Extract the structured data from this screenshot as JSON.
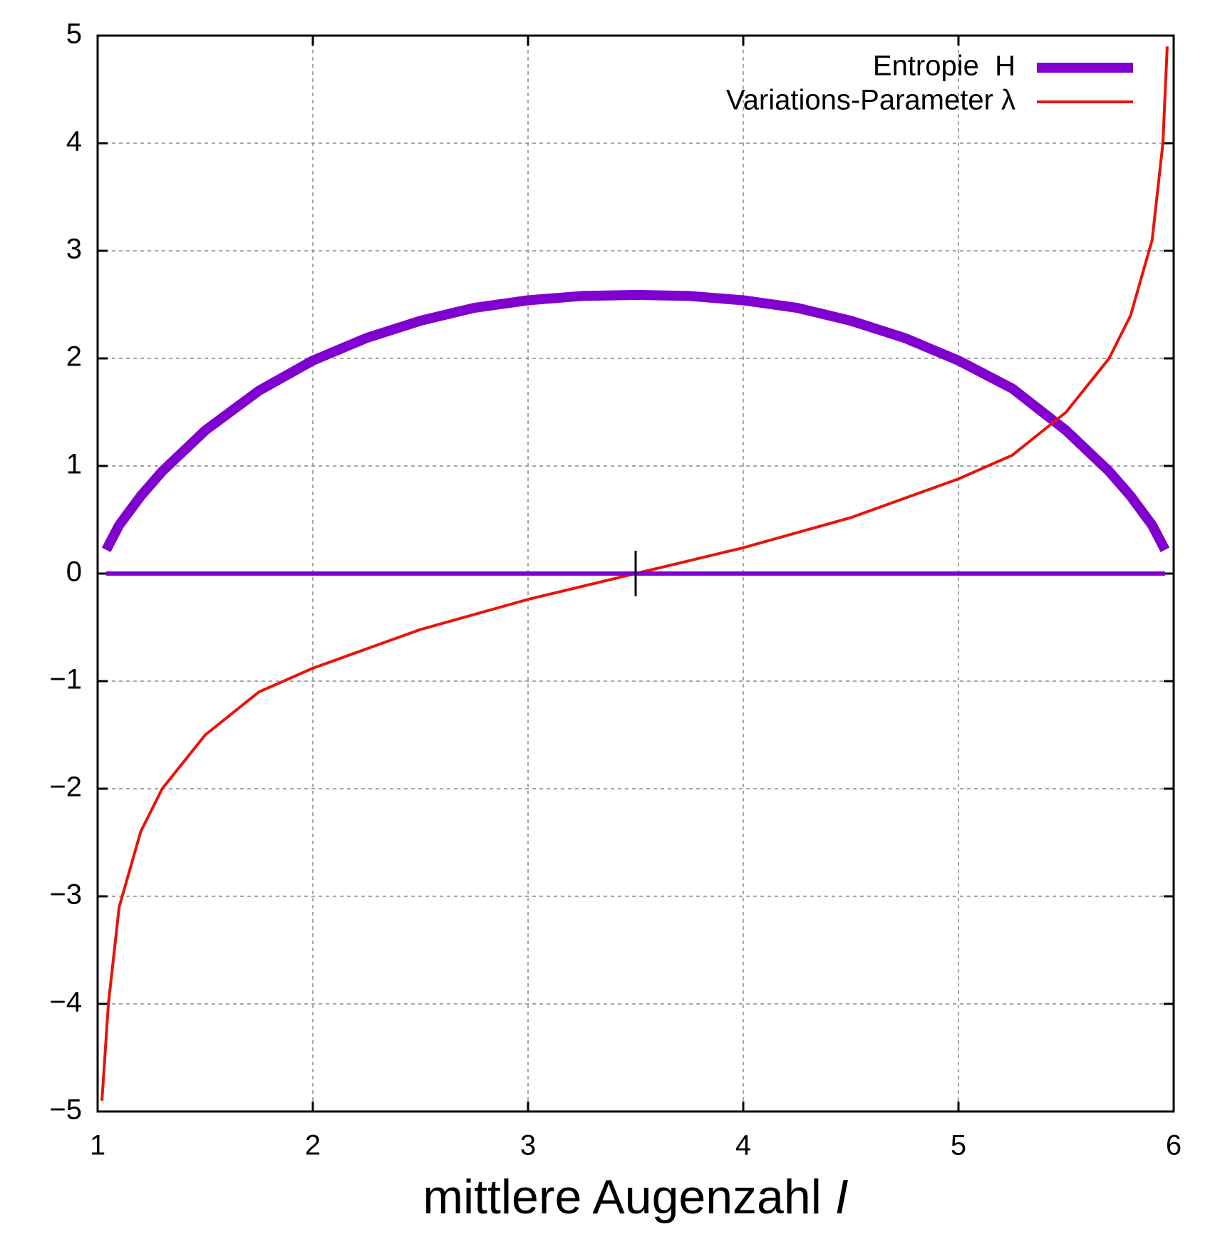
{
  "chart_data": {
    "type": "line",
    "xlabel": "mittlere Augenzahl",
    "xlabel_symbol": "I",
    "xlim": [
      1,
      6
    ],
    "xticks": [
      1,
      2,
      3,
      4,
      5,
      6
    ],
    "ylim": [
      -5,
      5
    ],
    "yticks": [
      {
        "value": -5,
        "label": "−5"
      },
      {
        "value": -4,
        "label": "−4"
      },
      {
        "value": -3,
        "label": "−3"
      },
      {
        "value": -2,
        "label": "−2"
      },
      {
        "value": -1,
        "label": "−1"
      },
      0,
      1,
      2,
      3,
      4,
      5
    ],
    "grid": true,
    "legend": "top-right",
    "series": [
      {
        "name": "Entropie  H",
        "color": "#8000d0",
        "width": 14,
        "x": [
          1.04,
          1.1,
          1.2,
          1.3,
          1.5,
          1.75,
          2,
          2.25,
          2.5,
          2.75,
          3,
          3.25,
          3.5,
          3.75,
          4,
          4.25,
          4.5,
          4.75,
          5,
          5.25,
          5.5,
          5.7,
          5.8,
          5.9,
          5.96
        ],
        "values": [
          0.22,
          0.45,
          0.72,
          0.95,
          1.33,
          1.7,
          1.98,
          2.19,
          2.35,
          2.47,
          2.54,
          2.58,
          2.59,
          2.58,
          2.54,
          2.47,
          2.35,
          2.19,
          1.98,
          1.72,
          1.33,
          0.95,
          0.72,
          0.45,
          0.22
        ]
      },
      {
        "name": "Variations-Parameter λ",
        "color": "#e8140a",
        "width": 4,
        "x": [
          1.02,
          1.05,
          1.1,
          1.2,
          1.3,
          1.5,
          1.75,
          2,
          2.5,
          3,
          3.5,
          4,
          4.5,
          5,
          5.25,
          5.5,
          5.7,
          5.8,
          5.9,
          5.95,
          5.97
        ],
        "values": [
          -4.9,
          -4.0,
          -3.1,
          -2.4,
          -2.0,
          -1.5,
          -1.1,
          -0.88,
          -0.52,
          -0.24,
          0,
          0.24,
          0.52,
          0.88,
          1.1,
          1.5,
          2.0,
          2.4,
          3.1,
          4.0,
          4.9
        ]
      },
      {
        "color": "#8000d0",
        "width": 6,
        "x": [
          1.04,
          5.96
        ],
        "values": [
          0,
          0
        ]
      }
    ],
    "marker": {
      "x": 3.5,
      "y": 0
    }
  }
}
